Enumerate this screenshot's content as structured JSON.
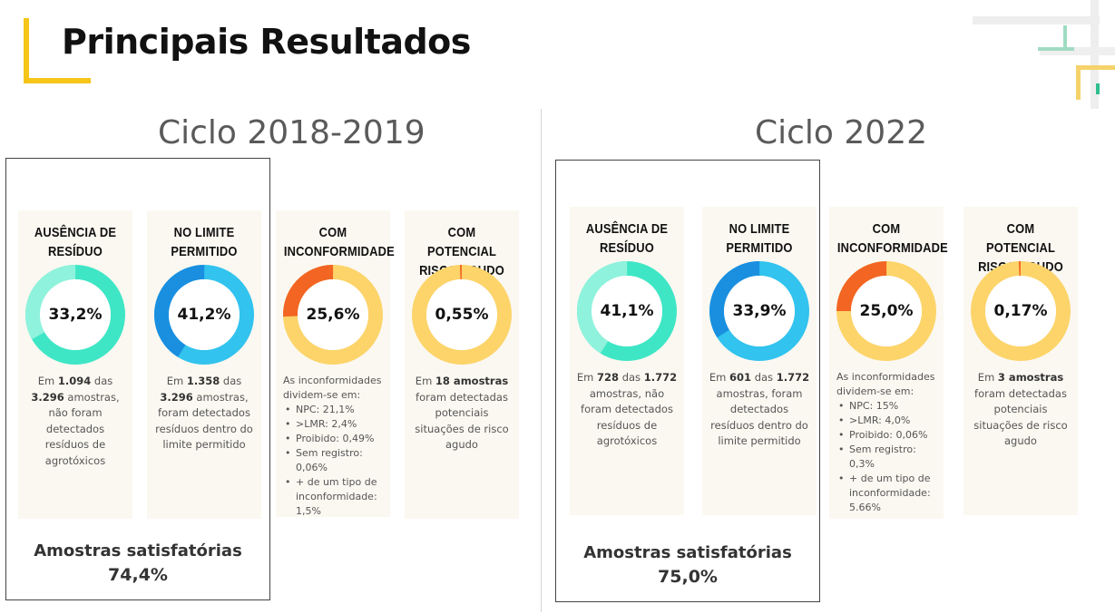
{
  "title": "Principais Resultados",
  "colors": {
    "accent": "#f5c518",
    "teal": "#3ee6c5",
    "teal_light": "#8ff2dc",
    "blue": "#1a8fe0",
    "blue_light": "#32c3ee",
    "orange": "#f26522",
    "yellow": "#fcd46a"
  },
  "cycles": [
    {
      "title": "Ciclo 2018-2019",
      "satisfactory_label": "Amostras satisfatórias",
      "satisfactory_value": "74,4%",
      "cards": [
        {
          "head1": "AUSÊNCIA DE",
          "head2": "RESÍDUO",
          "value": "33,2%",
          "fraction": 0.332,
          "desc_pre": "Em ",
          "desc_b1": "1.094",
          "desc_mid": " das ",
          "desc_b2": "3.296",
          "desc_post": " amostras, não foram detectados resíduos de agrotóxicos"
        },
        {
          "head1": "NO LIMITE",
          "head2": "PERMITIDO",
          "value": "41,2%",
          "fraction": 0.412,
          "desc_pre": "Em ",
          "desc_b1": "1.358",
          "desc_mid": " das ",
          "desc_b2": "3.296",
          "desc_post": " amostras, foram detectados resíduos dentro do limite permitido"
        },
        {
          "head1": "COM",
          "head2": "INCONFORMIDADE",
          "value": "25,6%",
          "fraction": 0.256,
          "list_intro": "As inconformidades dividem-se em:",
          "list": [
            "NPC: 21,1%",
            ">LMR: 2,4%",
            "Proibido: 0,49%",
            "Sem registro: 0,06%",
            "+ de um tipo de inconformidade: 1,5%"
          ]
        },
        {
          "head1": "COM POTENCIAL",
          "head2": "RISCO AGUDO",
          "value": "0,55%",
          "fraction": 0.0055,
          "desc_pre": "Em ",
          "desc_b1": "18 amostras",
          "desc_post": " foram detectadas potenciais situações de risco agudo"
        }
      ]
    },
    {
      "title": "Ciclo 2022",
      "satisfactory_label": "Amostras satisfatórias",
      "satisfactory_value": "75,0%",
      "cards": [
        {
          "head1": "AUSÊNCIA DE",
          "head2": "RESÍDUO",
          "value": "41,1%",
          "fraction": 0.411,
          "desc_pre": "Em ",
          "desc_b1": "728",
          "desc_mid": " das ",
          "desc_b2": "1.772",
          "desc_post": " amostras, não foram detectados resíduos de agrotóxicos"
        },
        {
          "head1": "NO LIMITE",
          "head2": "PERMITIDO",
          "value": "33,9%",
          "fraction": 0.339,
          "desc_pre": "Em ",
          "desc_b1": "601",
          "desc_mid": " das ",
          "desc_b2": "1.772",
          "desc_post": " amostras, foram detectados resíduos dentro do limite permitido"
        },
        {
          "head1": "COM",
          "head2": "INCONFORMIDADE",
          "value": "25,0%",
          "fraction": 0.25,
          "list_intro": "As inconformidades dividem-se em:",
          "list": [
            "NPC: 15%",
            ">LMR: 4,0%",
            "Proibido: 0,06%",
            "Sem registro: 0,3%",
            "+ de um tipo de inconformidade: 5.66%"
          ]
        },
        {
          "head1": "COM POTENCIAL",
          "head2": "RISCO AGUDO",
          "value": "0,17%",
          "fraction": 0.0017,
          "desc_pre": "Em ",
          "desc_b1": "3 amostras",
          "desc_post": " foram detectadas potenciais situações de risco agudo"
        }
      ]
    }
  ]
}
